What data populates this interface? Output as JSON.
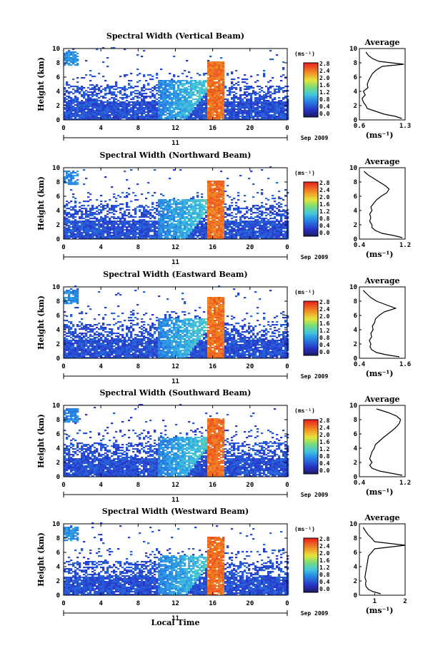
{
  "figure": {
    "xlabel": "Local Time",
    "date_label": "Sep 2009",
    "day_label": "11",
    "unit_label": "(ms⁻¹)",
    "avg_title": "Average",
    "avg_xlabel": "(ms⁻¹)",
    "ylabel": "Height (km)"
  },
  "chart_data": [
    {
      "type": "heatmap",
      "title": "Spectral Width (Vertical Beam)",
      "xlabel": "Local Time",
      "ylabel": "Height (km)",
      "x_ticks": [
        "0",
        "4",
        "8",
        "12",
        "16",
        "20",
        "0"
      ],
      "y_ticks": [
        "0",
        "2",
        "4",
        "6",
        "8",
        "10"
      ],
      "xlim": [
        0,
        24
      ],
      "ylim": [
        0,
        10
      ],
      "colorbar": {
        "label": "(ms⁻¹)",
        "ticks": [
          "2.8",
          "2.4",
          "2.0",
          "1.6",
          "1.2",
          "0.8",
          "0.4",
          "0.0"
        ],
        "range": [
          0,
          2.8
        ]
      },
      "average_profile": {
        "type": "line",
        "title": "Average",
        "xlabel": "(ms⁻¹)",
        "x_ticks": [
          "0.6",
          "1.3"
        ],
        "xlim": [
          0.6,
          1.3
        ],
        "heights": [
          0.2,
          0.5,
          0.8,
          1.2,
          1.6,
          2.0,
          2.5,
          3.0,
          3.5,
          4.0,
          4.5,
          5.0,
          5.5,
          6.0,
          6.5,
          7.0,
          7.5,
          7.8,
          8.2,
          8.6,
          9.0,
          9.5
        ],
        "values": [
          1.25,
          1.15,
          0.98,
          0.85,
          0.72,
          0.7,
          0.66,
          0.64,
          0.69,
          0.66,
          0.73,
          0.72,
          0.74,
          0.77,
          0.8,
          0.86,
          0.95,
          1.28,
          0.9,
          0.8,
          0.74,
          0.7
        ]
      }
    },
    {
      "type": "heatmap",
      "title": "Spectral Width (Northward Beam)",
      "xlabel": "Local Time",
      "ylabel": "Height (km)",
      "x_ticks": [
        "0",
        "4",
        "8",
        "12",
        "16",
        "20",
        "0"
      ],
      "y_ticks": [
        "0",
        "2",
        "4",
        "6",
        "8",
        "10"
      ],
      "xlim": [
        0,
        24
      ],
      "ylim": [
        0,
        10
      ],
      "colorbar": {
        "label": "(ms⁻¹)",
        "ticks": [
          "2.8",
          "2.4",
          "2.0",
          "1.6",
          "1.2",
          "0.8",
          "0.4",
          "0.0"
        ],
        "range": [
          0,
          2.8
        ]
      },
      "average_profile": {
        "type": "line",
        "title": "Average",
        "xlabel": "(ms⁻¹)",
        "x_ticks": [
          "0.4",
          "1.2"
        ],
        "xlim": [
          0.4,
          1.2
        ],
        "heights": [
          0.2,
          0.5,
          0.8,
          1.2,
          1.6,
          2.0,
          2.5,
          3.0,
          3.5,
          4.0,
          4.5,
          5.0,
          5.5,
          6.0,
          6.5,
          7.0,
          7.5,
          8.0,
          8.5,
          9.0,
          9.5
        ],
        "values": [
          1.15,
          1.0,
          0.8,
          0.68,
          0.62,
          0.62,
          0.58,
          0.6,
          0.58,
          0.62,
          0.6,
          0.65,
          0.7,
          0.78,
          0.88,
          0.92,
          0.85,
          0.75,
          0.65,
          0.55,
          0.48
        ]
      }
    },
    {
      "type": "heatmap",
      "title": "Spectral Width (Eastward Beam)",
      "xlabel": "Local Time",
      "ylabel": "Height (km)",
      "x_ticks": [
        "0",
        "4",
        "8",
        "12",
        "16",
        "20",
        "0"
      ],
      "y_ticks": [
        "0",
        "2",
        "4",
        "6",
        "8",
        "10"
      ],
      "xlim": [
        0,
        24
      ],
      "ylim": [
        0,
        10
      ],
      "colorbar": {
        "label": "(ms⁻¹)",
        "ticks": [
          "2.8",
          "2.4",
          "2.0",
          "1.6",
          "1.2",
          "0.8",
          "0.4",
          "0.0"
        ],
        "range": [
          0,
          2.8
        ]
      },
      "average_profile": {
        "type": "line",
        "title": "Average",
        "xlabel": "(ms⁻¹)",
        "x_ticks": [
          "0.4",
          "1.6"
        ],
        "xlim": [
          0.4,
          1.6
        ],
        "heights": [
          0.2,
          0.5,
          0.8,
          1.2,
          1.6,
          2.0,
          2.5,
          3.0,
          3.5,
          4.0,
          4.5,
          5.0,
          5.5,
          6.0,
          6.5,
          7.0,
          7.5,
          8.0,
          8.5,
          9.0,
          9.5
        ],
        "values": [
          1.45,
          1.1,
          0.85,
          0.72,
          0.68,
          0.7,
          0.66,
          0.72,
          0.7,
          0.76,
          0.74,
          0.8,
          0.82,
          0.92,
          1.05,
          1.35,
          1.1,
          0.85,
          0.7,
          0.6,
          0.5
        ]
      }
    },
    {
      "type": "heatmap",
      "title": "Spectral Width (Southward Beam)",
      "xlabel": "Local Time",
      "ylabel": "Height (km)",
      "x_ticks": [
        "0",
        "4",
        "8",
        "12",
        "16",
        "20",
        "0"
      ],
      "y_ticks": [
        "0",
        "2",
        "4",
        "6",
        "8",
        "10"
      ],
      "xlim": [
        0,
        24
      ],
      "ylim": [
        0,
        10
      ],
      "colorbar": {
        "label": "(ms⁻¹)",
        "ticks": [
          "2.8",
          "2.4",
          "2.0",
          "1.6",
          "1.2",
          "0.8",
          "0.4",
          "0.0"
        ],
        "range": [
          0,
          2.8
        ]
      },
      "average_profile": {
        "type": "line",
        "title": "Average",
        "xlabel": "(ms⁻¹)",
        "x_ticks": [
          "0.4",
          "1.2"
        ],
        "xlim": [
          0.4,
          1.2
        ],
        "heights": [
          0.2,
          0.5,
          0.8,
          1.2,
          1.6,
          2.0,
          2.5,
          3.0,
          3.5,
          4.0,
          4.5,
          5.0,
          5.5,
          6.0,
          6.5,
          7.0,
          7.5,
          8.0,
          8.5,
          9.0,
          9.5
        ],
        "values": [
          1.15,
          0.95,
          0.75,
          0.62,
          0.58,
          0.62,
          0.58,
          0.6,
          0.62,
          0.66,
          0.68,
          0.75,
          0.82,
          0.9,
          0.98,
          1.05,
          1.1,
          1.12,
          1.05,
          0.9,
          0.7
        ]
      }
    },
    {
      "type": "heatmap",
      "title": "Spectral Width (Westward Beam)",
      "xlabel": "Local Time",
      "ylabel": "Height (km)",
      "x_ticks": [
        "0",
        "4",
        "8",
        "12",
        "16",
        "20",
        "0"
      ],
      "y_ticks": [
        "0",
        "2",
        "4",
        "6",
        "8",
        "10"
      ],
      "xlim": [
        0,
        24
      ],
      "ylim": [
        0,
        10
      ],
      "colorbar": {
        "label": "(ms⁻¹)",
        "ticks": [
          "2.8",
          "2.4",
          "2.0",
          "1.6",
          "1.2",
          "0.8",
          "0.4",
          "0.0"
        ],
        "range": [
          0,
          2.8
        ]
      },
      "average_profile": {
        "type": "line",
        "title": "Average",
        "xlabel": "(ms⁻¹)",
        "x_ticks": [
          "1",
          "2"
        ],
        "xlim": [
          0.5,
          2.0
        ],
        "heights": [
          0.2,
          0.5,
          0.8,
          1.2,
          1.6,
          2.0,
          2.5,
          3.0,
          3.5,
          4.0,
          4.5,
          5.0,
          5.5,
          6.0,
          6.5,
          7.0,
          7.5,
          8.0,
          8.5,
          9.0,
          9.5
        ],
        "values": [
          1.2,
          0.95,
          0.8,
          0.72,
          0.7,
          0.72,
          0.68,
          0.7,
          0.72,
          0.74,
          0.76,
          0.78,
          0.8,
          0.9,
          1.0,
          2.0,
          1.0,
          0.9,
          0.78,
          0.7,
          0.62
        ]
      }
    }
  ]
}
